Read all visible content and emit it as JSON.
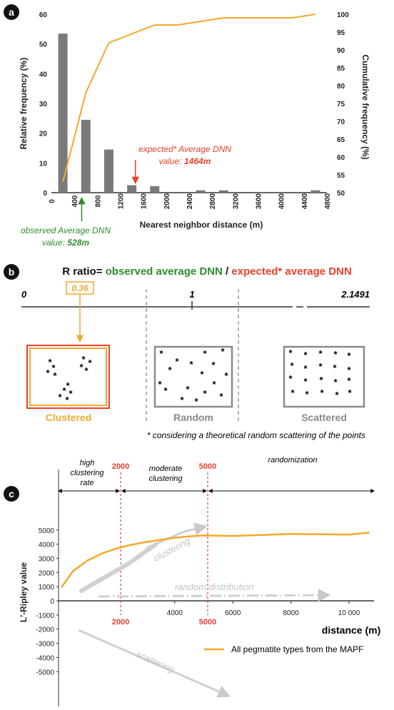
{
  "panels": {
    "a": "a",
    "b": "b",
    "c": "c"
  },
  "chart_data": [
    {
      "type": "bar",
      "panel": "a",
      "x": [
        200,
        600,
        1000,
        1400,
        1800,
        2600,
        3000,
        4600
      ],
      "values": [
        53.5,
        24.5,
        14.5,
        2.5,
        2.2,
        0.8,
        0.8,
        0.8
      ],
      "cumulative": {
        "x": [
          200,
          600,
          1000,
          1800,
          2200,
          2600,
          3000,
          4000,
          4200,
          4600
        ],
        "values": [
          53,
          78,
          92,
          97,
          97,
          98,
          99,
          99,
          99,
          100
        ]
      },
      "xlabel": "Nearest neighbor distance (m)",
      "ylabel": "Relative frequency (%)",
      "y2label": "Cumulative  frequency (%)",
      "xlim": [
        0,
        4800
      ],
      "ylim": [
        0,
        60
      ],
      "y2lim": [
        50,
        100
      ],
      "x_ticks": [
        "0",
        "400",
        "800",
        "1200",
        "1600",
        "2000",
        "2400",
        "2800",
        "3200",
        "3600",
        "4000",
        "4400",
        "4800"
      ],
      "y_ticks": [
        "0",
        "10",
        "20",
        "30",
        "40",
        "50",
        "60"
      ],
      "y2_ticks": [
        "50",
        "55",
        "60",
        "65",
        "70",
        "75",
        "80",
        "85",
        "90",
        "95",
        "100"
      ],
      "annotations": {
        "expected_line1": "expected* Average DNN",
        "expected_line2_prefix": "value: ",
        "expected_value": "1464m",
        "expected_x": 1464,
        "observed_line1": "observed Average DNN",
        "observed_line2_prefix": "value: ",
        "observed_value": "528m",
        "observed_x": 528
      },
      "colors": {
        "bar": "#7a7a7a",
        "cumulative": "#f6a828",
        "expected": "#e8412c",
        "observed": "#2e8b2e"
      }
    },
    {
      "type": "other",
      "panel": "b",
      "title_prefix": "R ratio= ",
      "title_observed": "observed average DNN",
      "title_sep": " / ",
      "title_expected": "expected* average DNN",
      "scale": {
        "left": "0",
        "value": "0.36",
        "value_x": 0.36,
        "mid": "1",
        "right": "2.1491"
      },
      "categories": [
        "Clustered",
        "Random",
        "Scattered"
      ],
      "footnote": "* considering a theoretical random scattering of the points",
      "colors": {
        "clustered": "#e86a2c",
        "box": "#8a8a8a",
        "value": "#f0a830"
      }
    },
    {
      "type": "line",
      "panel": "c",
      "series": [
        {
          "name": "All pegmatite types from the MAPF",
          "x": [
            100,
            500,
            1000,
            1500,
            2000,
            2500,
            3000,
            3500,
            4000,
            4500,
            5000,
            5500,
            6000,
            7000,
            8000,
            9000,
            10000,
            10700
          ],
          "values": [
            950,
            2100,
            2850,
            3350,
            3700,
            3950,
            4150,
            4300,
            4450,
            4550,
            4620,
            4600,
            4580,
            4650,
            4720,
            4700,
            4680,
            4820
          ]
        }
      ],
      "xlabel": "distance (m)",
      "ylabel": "L'-Ripley value",
      "xlim": [
        0,
        10700
      ],
      "ylim": [
        -5000,
        5000
      ],
      "x_ticks": [
        "2000",
        "4000",
        "5000",
        "6000",
        "8000",
        "10 000"
      ],
      "y_ticks": [
        "5000",
        "4000",
        "3000",
        "2000",
        "1000",
        "0",
        "-1000",
        "-2000",
        "-3000",
        "-4000",
        "-5000"
      ],
      "thresholds": [
        "2000",
        "5000"
      ],
      "top_labels": {
        "high1": "high",
        "high2": "clustering",
        "high3": "rate",
        "mod1": "moderate",
        "mod2": "clustering",
        "rand": "randomization"
      },
      "arrow_labels": {
        "clustering": "clustering",
        "random": "random distribution",
        "scattering": "scattering"
      },
      "colors": {
        "line": "#f6a828",
        "threshold": "#e8412c"
      }
    }
  ]
}
